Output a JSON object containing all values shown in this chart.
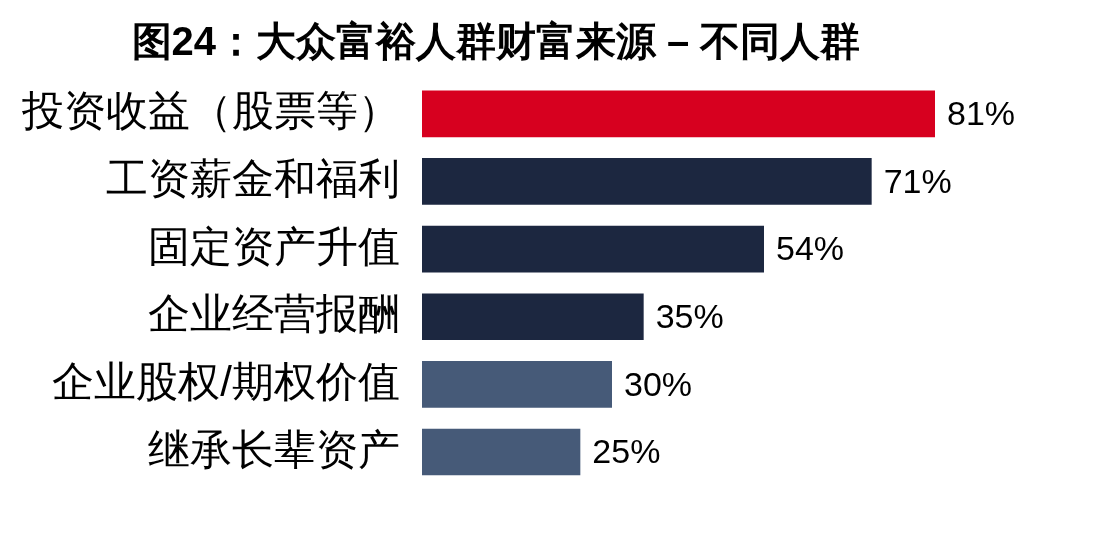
{
  "chart_data": {
    "type": "bar",
    "orientation": "horizontal",
    "title": "图24：大众富裕人群财富来源 – 不同人群",
    "categories": [
      "投资收益（股票等）",
      "工资薪金和福利",
      "固定资产升值",
      "企业经营报酬",
      "企业股权/期权价值",
      "继承长辈资产"
    ],
    "values": [
      81,
      71,
      54,
      35,
      30,
      25
    ],
    "colors": [
      "#d7001f",
      "#1c2740",
      "#1c2740",
      "#1c2740",
      "#465a78",
      "#465a78"
    ],
    "value_labels": [
      "81%",
      "71%",
      "54%",
      "35%",
      "30%",
      "25%"
    ]
  }
}
